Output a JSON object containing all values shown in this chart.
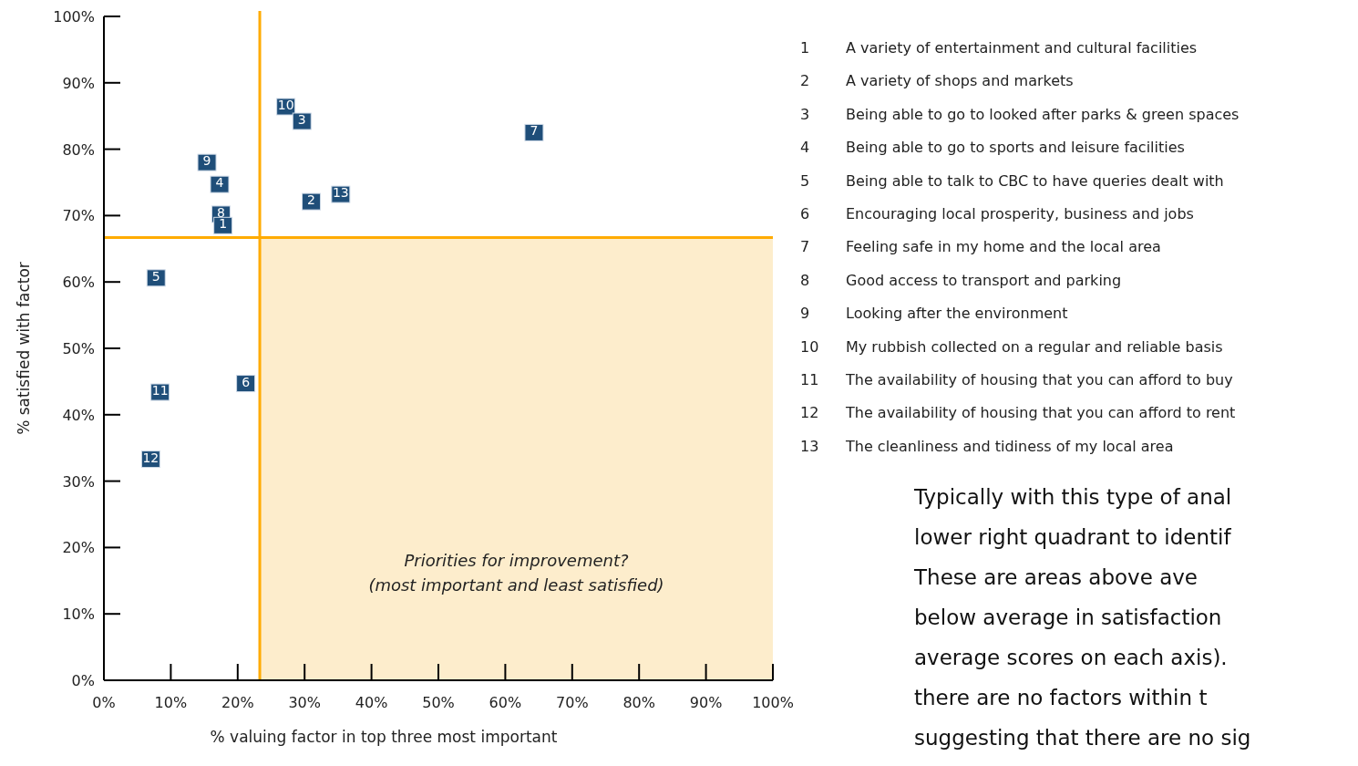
{
  "chart_data": {
    "type": "scatter",
    "xlabel": "% valuing factor in top three most important",
    "ylabel": "% satisfied with factor",
    "xlim": [
      0,
      100
    ],
    "ylim": [
      0,
      100
    ],
    "xticks": [
      {
        "value": 0,
        "label": "0%"
      },
      {
        "value": 10,
        "label": "10%"
      },
      {
        "value": 20,
        "label": "20%"
      },
      {
        "value": 30,
        "label": "30%"
      },
      {
        "value": 40,
        "label": "40%"
      },
      {
        "value": 50,
        "label": "50%"
      },
      {
        "value": 60,
        "label": "60%"
      },
      {
        "value": 70,
        "label": "70%"
      },
      {
        "value": 80,
        "label": "80%"
      },
      {
        "value": 90,
        "label": "90%"
      },
      {
        "value": 100,
        "label": "100%"
      }
    ],
    "yticks": [
      {
        "value": 0,
        "label": "0%"
      },
      {
        "value": 10,
        "label": "10%"
      },
      {
        "value": 20,
        "label": "20%"
      },
      {
        "value": 30,
        "label": "30%"
      },
      {
        "value": 40,
        "label": "40%"
      },
      {
        "value": 50,
        "label": "50%"
      },
      {
        "value": 60,
        "label": "60%"
      },
      {
        "value": 70,
        "label": "70%"
      },
      {
        "value": 80,
        "label": "80%"
      },
      {
        "value": 90,
        "label": "90%"
      },
      {
        "value": 100,
        "label": "100%"
      }
    ],
    "grid": false,
    "marker": "square",
    "series": [
      {
        "name": "1",
        "color": "#1f4e79",
        "x": [
          17.8
        ],
        "values": [
          68.5
        ]
      },
      {
        "name": "2",
        "color": "#1f4e79",
        "x": [
          31.0
        ],
        "values": [
          72.1
        ]
      },
      {
        "name": "3",
        "color": "#1f4e79",
        "x": [
          29.6
        ],
        "values": [
          84.2
        ]
      },
      {
        "name": "4",
        "color": "#1f4e79",
        "x": [
          17.3
        ],
        "values": [
          74.7
        ]
      },
      {
        "name": "5",
        "color": "#1f4e79",
        "x": [
          7.8
        ],
        "values": [
          60.6
        ]
      },
      {
        "name": "6",
        "color": "#1f4e79",
        "x": [
          21.2
        ],
        "values": [
          44.7
        ]
      },
      {
        "name": "7",
        "color": "#1f4e79",
        "x": [
          64.3
        ],
        "values": [
          82.5
        ]
      },
      {
        "name": "8",
        "color": "#1f4e79",
        "x": [
          17.5
        ],
        "values": [
          70.2
        ]
      },
      {
        "name": "9",
        "color": "#1f4e79",
        "x": [
          15.4
        ],
        "values": [
          78.0
        ]
      },
      {
        "name": "10",
        "color": "#1f4e79",
        "x": [
          27.2
        ],
        "values": [
          86.4
        ]
      },
      {
        "name": "11",
        "color": "#1f4e79",
        "x": [
          8.4
        ],
        "values": [
          43.4
        ]
      },
      {
        "name": "12",
        "color": "#1f4e79",
        "x": [
          7.0
        ],
        "values": [
          33.3
        ]
      },
      {
        "name": "13",
        "color": "#1f4e79",
        "x": [
          35.4
        ],
        "values": [
          73.2
        ]
      }
    ],
    "ref_lines": [
      {
        "axis": "x",
        "value": 23.3,
        "color": "#ffab00"
      },
      {
        "axis": "y",
        "value": 66.7,
        "color": "#ffab00"
      }
    ],
    "bands": [
      {
        "axis": "x",
        "from": 23.3,
        "to": 100,
        "color": "#fdedcc",
        "label": "Priorities for improvement?\n(most important and least satisfied)"
      }
    ],
    "annotations": [
      "A variety of entertainment and cultural facilities",
      "A variety of shops and markets",
      "Being able to go to looked after parks & green spaces",
      "Being able to go to sports and leisure facilities",
      "Being able to talk to CBC to have queries dealt with",
      "Encouraging local prosperity, business and jobs",
      "Feeling safe in my home and the local area",
      "Good access to transport and parking",
      "Looking after the environment",
      "My rubbish collected on a regular and reliable basis",
      "The availability of housing that you can afford to buy",
      "The availability of housing that you can afford to rent",
      "The cleanliness and tidiness of my local area",
      "Typically with this type of anal",
      "lower right quadrant to identif",
      "These are areas above ave",
      "below average in satisfaction",
      "average scores on each axis).",
      "there are no factors within t",
      "suggesting that there are no sig"
    ]
  }
}
